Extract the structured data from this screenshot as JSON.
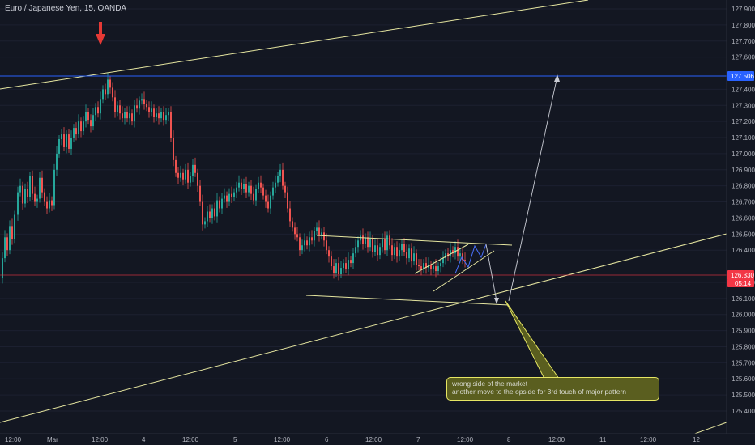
{
  "chart_data": {
    "type": "candlestick",
    "title": "Euro / Japanese Yen, 15, OANDA",
    "ylim": [
      125.4,
      127.95
    ],
    "y_ticks": [
      "127.900",
      "127.800",
      "127.700",
      "127.600",
      "127.400",
      "127.300",
      "127.200",
      "127.100",
      "127.000",
      "126.900",
      "126.800",
      "126.700",
      "126.600",
      "126.500",
      "126.400",
      "126.200",
      "126.100",
      "126.000",
      "125.900",
      "125.800",
      "125.700",
      "125.600",
      "125.500",
      "125.400"
    ],
    "x_ticks": [
      "12:00",
      "Mar",
      "12:00",
      "4",
      "12:00",
      "5",
      "12:00",
      "6",
      "12:00",
      "7",
      "12:00",
      "8",
      "12:00",
      "11",
      "12:00",
      "12"
    ],
    "price_tags": [
      {
        "label": "127.506",
        "value": 127.506,
        "color": "#2962ff"
      },
      {
        "label": "126.330",
        "value": 126.33,
        "color": "#f23645"
      },
      {
        "label": "05:14",
        "value": 126.26,
        "color": "#f23645"
      }
    ],
    "price_path": [
      [
        0,
        126.23
      ],
      [
        3,
        126.35
      ],
      [
        6,
        126.48
      ],
      [
        9,
        126.4
      ],
      [
        12,
        126.55
      ],
      [
        15,
        126.47
      ],
      [
        18,
        126.62
      ],
      [
        22,
        126.76
      ],
      [
        25,
        126.8
      ],
      [
        28,
        126.69
      ],
      [
        31,
        126.78
      ],
      [
        34,
        126.73
      ],
      [
        37,
        126.86
      ],
      [
        40,
        126.75
      ],
      [
        43,
        126.7
      ],
      [
        46,
        126.72
      ],
      [
        49,
        126.85
      ],
      [
        52,
        126.76
      ],
      [
        55,
        126.7
      ],
      [
        58,
        126.66
      ],
      [
        61,
        126.71
      ],
      [
        64,
        126.68
      ],
      [
        67,
        126.9
      ],
      [
        70,
        127.0
      ],
      [
        73,
        127.09
      ],
      [
        76,
        127.12
      ],
      [
        79,
        127.04
      ],
      [
        82,
        127.12
      ],
      [
        85,
        127.03
      ],
      [
        88,
        127.1
      ],
      [
        91,
        127.16
      ],
      [
        94,
        127.12
      ],
      [
        97,
        127.2
      ],
      [
        100,
        127.14
      ],
      [
        103,
        127.2
      ],
      [
        106,
        127.26
      ],
      [
        109,
        127.21
      ],
      [
        112,
        127.17
      ],
      [
        115,
        127.24
      ],
      [
        118,
        127.29
      ],
      [
        121,
        127.25
      ],
      [
        124,
        127.34
      ],
      [
        127,
        127.4
      ],
      [
        130,
        127.37
      ],
      [
        133,
        127.46
      ],
      [
        136,
        127.41
      ],
      [
        139,
        127.35
      ],
      [
        142,
        127.26
      ],
      [
        145,
        127.3
      ],
      [
        148,
        127.25
      ],
      [
        151,
        127.22
      ],
      [
        154,
        127.26
      ],
      [
        157,
        127.22
      ],
      [
        160,
        127.25
      ],
      [
        163,
        127.2
      ],
      [
        166,
        127.3
      ],
      [
        169,
        127.28
      ],
      [
        172,
        127.33
      ],
      [
        175,
        127.34
      ],
      [
        178,
        127.31
      ],
      [
        181,
        127.29
      ],
      [
        184,
        127.26
      ],
      [
        187,
        127.28
      ],
      [
        190,
        127.23
      ],
      [
        193,
        127.25
      ],
      [
        196,
        127.22
      ],
      [
        199,
        127.26
      ],
      [
        202,
        127.21
      ],
      [
        205,
        127.24
      ],
      [
        208,
        127.26
      ],
      [
        211,
        127.1
      ],
      [
        214,
        126.96
      ],
      [
        217,
        126.88
      ],
      [
        220,
        126.85
      ],
      [
        223,
        126.88
      ],
      [
        226,
        126.84
      ],
      [
        229,
        126.9
      ],
      [
        232,
        126.82
      ],
      [
        235,
        126.86
      ],
      [
        238,
        126.93
      ],
      [
        241,
        126.88
      ],
      [
        244,
        126.8
      ],
      [
        247,
        126.7
      ],
      [
        250,
        126.56
      ],
      [
        253,
        126.58
      ],
      [
        256,
        126.64
      ],
      [
        259,
        126.6
      ],
      [
        262,
        126.66
      ],
      [
        265,
        126.61
      ],
      [
        268,
        126.71
      ],
      [
        271,
        126.66
      ],
      [
        274,
        126.72
      ],
      [
        277,
        126.74
      ],
      [
        280,
        126.7
      ],
      [
        283,
        126.75
      ],
      [
        286,
        126.73
      ],
      [
        289,
        126.76
      ],
      [
        292,
        126.79
      ],
      [
        295,
        126.82
      ],
      [
        298,
        126.78
      ],
      [
        301,
        126.81
      ],
      [
        304,
        126.76
      ],
      [
        307,
        126.8
      ],
      [
        310,
        126.75
      ],
      [
        313,
        126.71
      ],
      [
        316,
        126.78
      ],
      [
        319,
        126.82
      ],
      [
        322,
        126.79
      ],
      [
        325,
        126.74
      ],
      [
        328,
        126.7
      ],
      [
        331,
        126.66
      ],
      [
        334,
        126.74
      ],
      [
        337,
        126.79
      ],
      [
        340,
        126.82
      ],
      [
        343,
        126.86
      ],
      [
        346,
        126.9
      ],
      [
        349,
        126.8
      ],
      [
        352,
        126.76
      ],
      [
        355,
        126.66
      ],
      [
        358,
        126.58
      ],
      [
        361,
        126.54
      ],
      [
        364,
        126.5
      ],
      [
        367,
        126.48
      ],
      [
        370,
        126.4
      ],
      [
        373,
        126.43
      ],
      [
        376,
        126.46
      ],
      [
        379,
        126.43
      ],
      [
        382,
        126.48
      ],
      [
        385,
        126.46
      ],
      [
        388,
        126.52
      ],
      [
        391,
        126.54
      ],
      [
        394,
        126.49
      ],
      [
        397,
        126.51
      ],
      [
        400,
        126.46
      ],
      [
        403,
        126.4
      ],
      [
        406,
        126.36
      ],
      [
        409,
        126.3
      ],
      [
        412,
        126.26
      ],
      [
        415,
        126.32
      ],
      [
        418,
        126.25
      ],
      [
        421,
        126.29
      ],
      [
        424,
        126.32
      ],
      [
        427,
        126.28
      ],
      [
        430,
        126.34
      ],
      [
        433,
        126.32
      ],
      [
        436,
        126.38
      ],
      [
        439,
        126.42
      ],
      [
        442,
        126.46
      ],
      [
        445,
        126.49
      ],
      [
        448,
        126.44
      ],
      [
        451,
        126.48
      ],
      [
        454,
        126.42
      ],
      [
        457,
        126.47
      ],
      [
        460,
        126.39
      ],
      [
        463,
        126.43
      ],
      [
        466,
        126.37
      ],
      [
        469,
        126.42
      ],
      [
        472,
        126.47
      ],
      [
        475,
        126.4
      ],
      [
        478,
        126.49
      ],
      [
        481,
        126.43
      ],
      [
        484,
        126.37
      ],
      [
        487,
        126.42
      ],
      [
        490,
        126.36
      ],
      [
        493,
        126.4
      ],
      [
        496,
        126.44
      ],
      [
        499,
        126.39
      ],
      [
        502,
        126.35
      ],
      [
        505,
        126.41
      ],
      [
        508,
        126.33
      ],
      [
        511,
        126.38
      ],
      [
        514,
        126.31
      ],
      [
        517,
        126.3
      ],
      [
        520,
        126.28
      ],
      [
        523,
        126.32
      ],
      [
        526,
        126.29
      ],
      [
        529,
        126.31
      ],
      [
        532,
        126.28
      ],
      [
        535,
        126.3
      ],
      [
        538,
        126.27
      ],
      [
        541,
        126.3
      ],
      [
        544,
        126.32
      ],
      [
        547,
        126.35
      ],
      [
        550,
        126.38
      ],
      [
        553,
        126.36
      ],
      [
        556,
        126.4
      ],
      [
        559,
        126.38
      ],
      [
        562,
        126.42
      ],
      [
        565,
        126.36
      ],
      [
        568,
        126.38
      ],
      [
        571,
        126.34
      ],
      [
        574,
        126.33
      ]
    ],
    "annotations": {
      "arrow_marker": "red-down-arrow",
      "callout_lines": [
        "wrong side of the market",
        "another move to the opside for 3rd touch of major pattern"
      ]
    },
    "colors": {
      "background": "#131722",
      "up": "#26a69a",
      "down": "#ef5350",
      "trendline": "#e6e6a0",
      "blue_level": "#2962ff",
      "red_level": "#f23645",
      "callout_bg": "#5a5e1f",
      "callout_border": "#e6e663"
    }
  }
}
